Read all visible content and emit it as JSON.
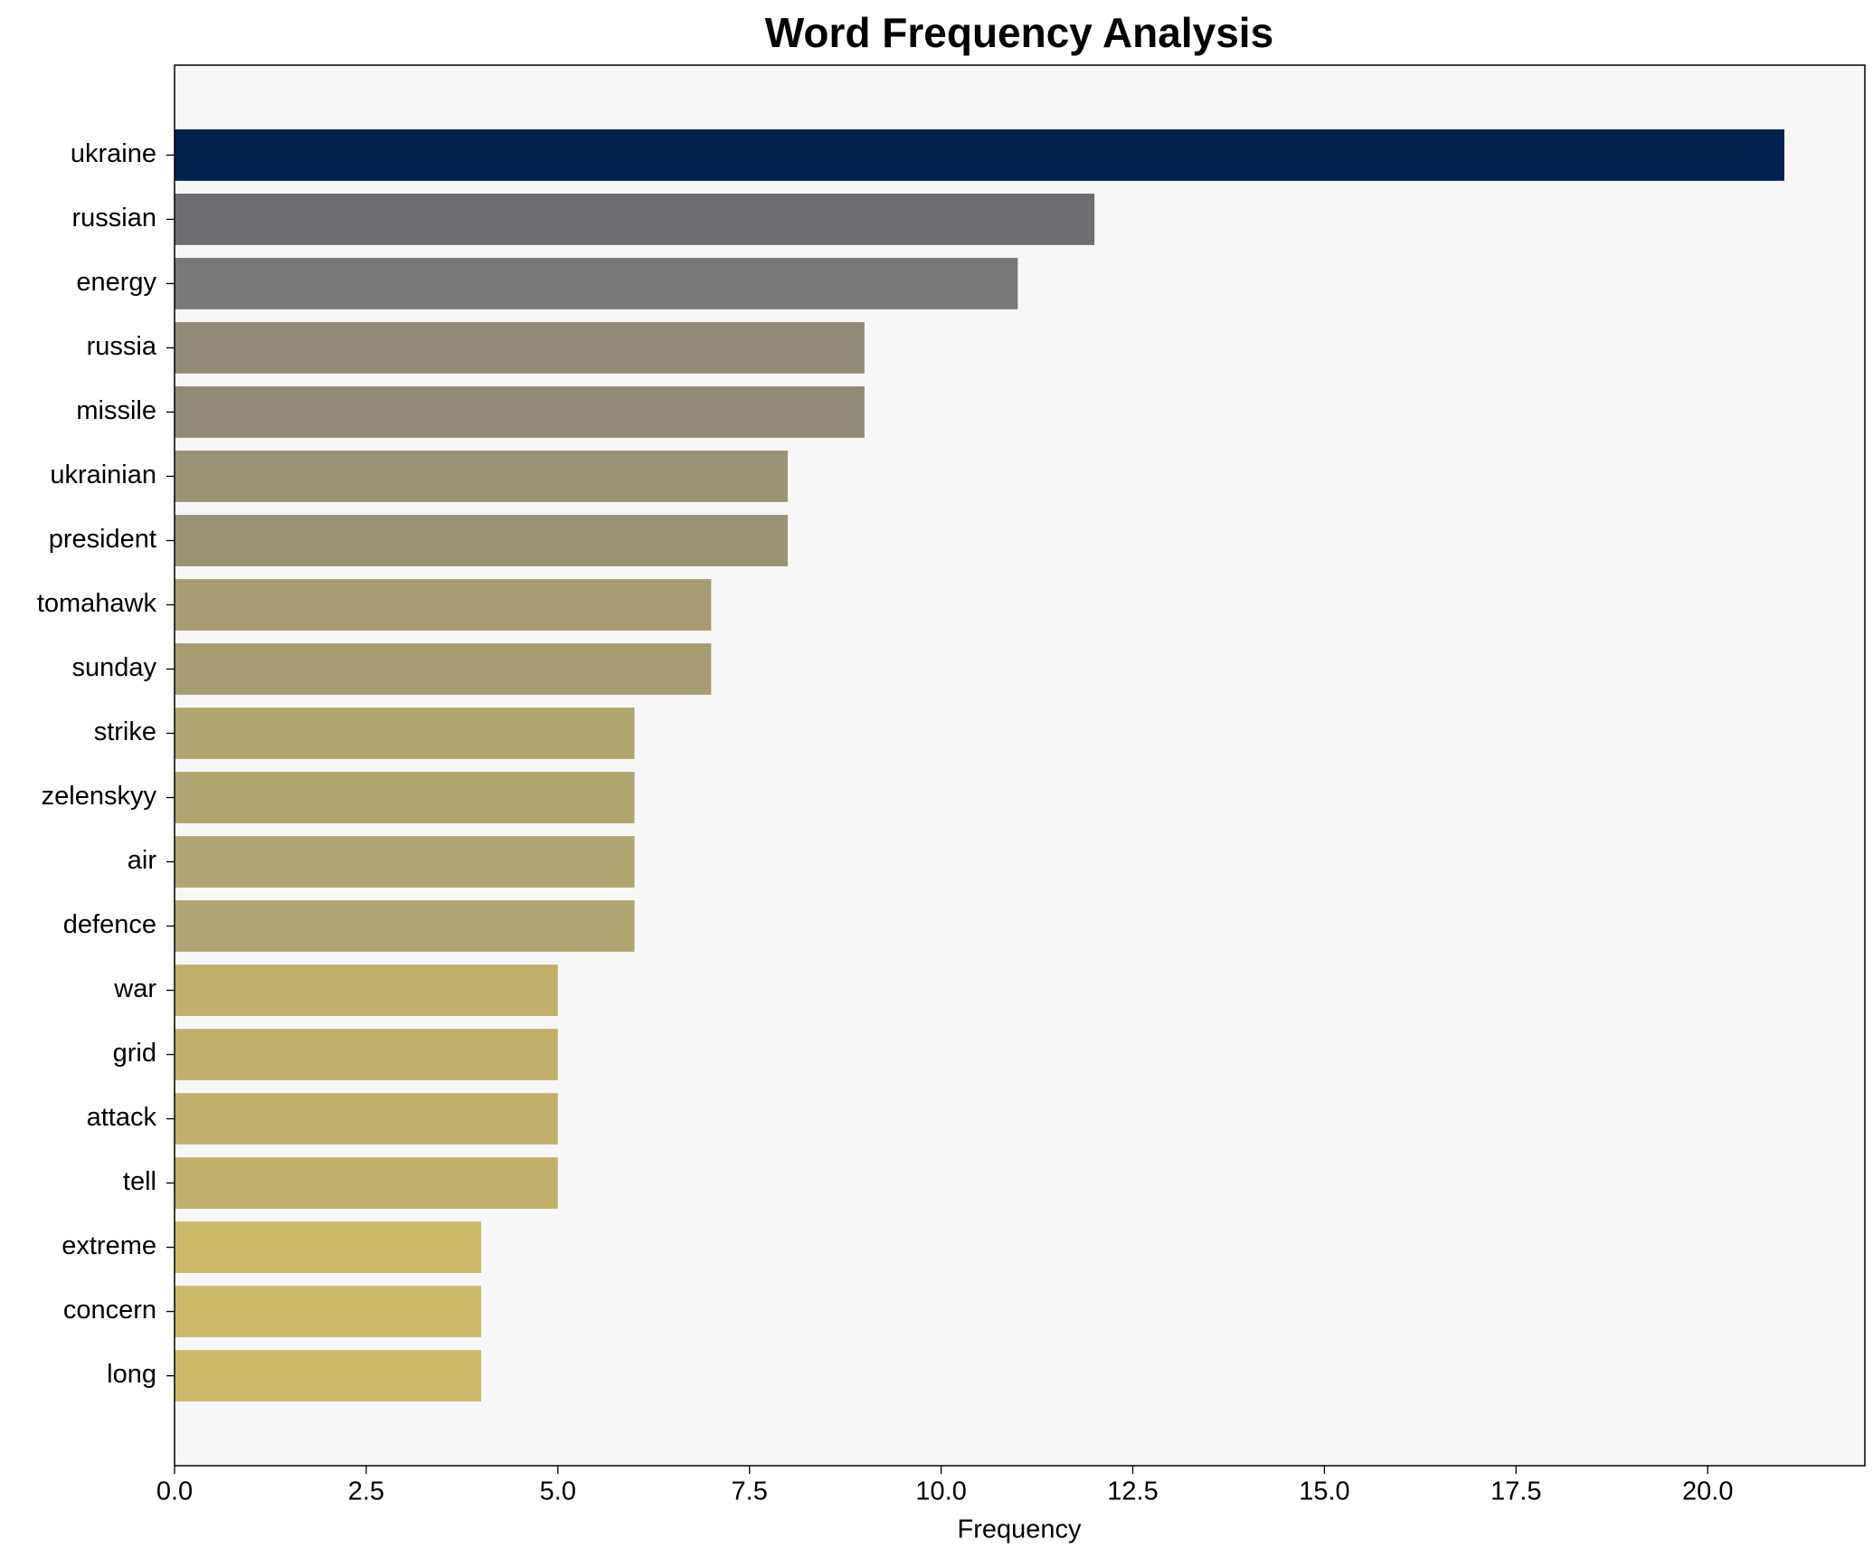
{
  "chart_data": {
    "type": "barh",
    "title": "Word Frequency Analysis",
    "xlabel": "Frequency",
    "categories": [
      "ukraine",
      "russian",
      "energy",
      "russia",
      "missile",
      "ukrainian",
      "president",
      "tomahawk",
      "sunday",
      "strike",
      "zelenskyy",
      "air",
      "defence",
      "war",
      "grid",
      "attack",
      "tell",
      "extreme",
      "concern",
      "long"
    ],
    "values": [
      21,
      12,
      11,
      9,
      9,
      8,
      8,
      7,
      7,
      6,
      6,
      6,
      6,
      5,
      5,
      5,
      5,
      4,
      4,
      4
    ],
    "colors": [
      "#00224e",
      "#6c6e72",
      "#787877",
      "#918a78",
      "#918a78",
      "#9b9377",
      "#9b9377",
      "#a59c74",
      "#a59c74",
      "#b0a570",
      "#b0a570",
      "#b0a570",
      "#b0a570",
      "#c0b06c",
      "#c0b06c",
      "#c0b06c",
      "#c0b06c",
      "#cbba69",
      "#cbba69",
      "#cbba69"
    ],
    "xlim": [
      0,
      22.05
    ],
    "xticks": [
      {
        "value": 0,
        "label": "0.0"
      },
      {
        "value": 2.5,
        "label": "2.5"
      },
      {
        "value": 5,
        "label": "5.0"
      },
      {
        "value": 7.5,
        "label": "7.5"
      },
      {
        "value": 10,
        "label": "10.0"
      },
      {
        "value": 12.5,
        "label": "12.5"
      },
      {
        "value": 15,
        "label": "15.0"
      },
      {
        "value": 17.5,
        "label": "17.5"
      },
      {
        "value": 20,
        "label": "20.0"
      }
    ],
    "grid": false
  }
}
